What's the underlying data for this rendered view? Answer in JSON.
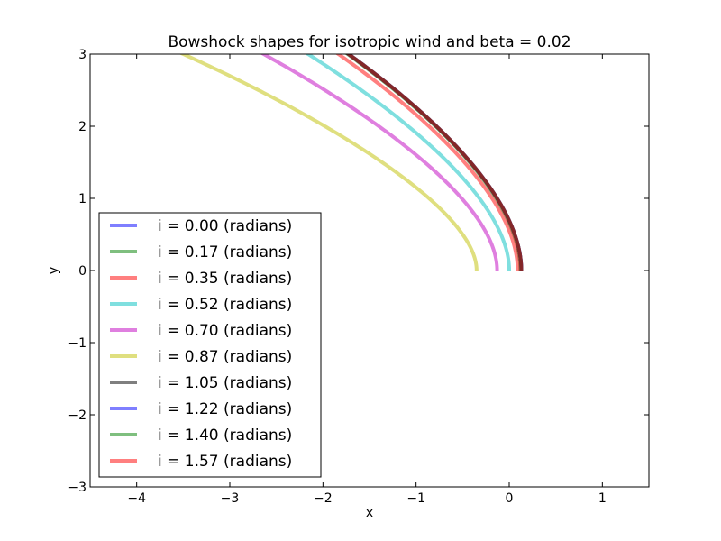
{
  "chart_data": {
    "type": "line",
    "title": "Bowshock shapes for isotropic wind and beta = 0.02",
    "xlabel": "x",
    "ylabel": "y",
    "xlim": [
      -4.5,
      1.5
    ],
    "ylim": [
      -3,
      3
    ],
    "xticks": [
      -4,
      -3,
      -2,
      -1,
      0,
      1
    ],
    "yticks": [
      -3,
      -2,
      -1,
      0,
      1,
      2,
      3
    ],
    "xtick_labels": [
      "−4",
      "−3",
      "−2",
      "−1",
      "0",
      "1"
    ],
    "ytick_labels": [
      "−3",
      "−2",
      "−1",
      "0",
      "1",
      "2",
      "3"
    ],
    "grid": false,
    "legend_position": "lower-left",
    "series": [
      {
        "name": "i = 0.00 (radians)",
        "color": "#0000ff",
        "x0": 0.13,
        "p": [
          1.8,
          0.32,
          -0.013
        ]
      },
      {
        "name": "i = 0.17 (radians)",
        "color": "#008000",
        "x0": 0.12,
        "p": [
          1.8,
          0.32,
          -0.013
        ]
      },
      {
        "name": "i = 0.35 (radians)",
        "color": "#ff0000",
        "x0": 0.09,
        "p": [
          1.74,
          0.33,
          -0.013
        ]
      },
      {
        "name": "i = 0.52 (radians)",
        "color": "#00bfbf",
        "x0": 0.0,
        "p": [
          1.58,
          0.34,
          -0.012
        ]
      },
      {
        "name": "i = 0.70 (radians)",
        "color": "#bf00bf",
        "x0": -0.13,
        "p": [
          1.42,
          0.33,
          -0.012
        ]
      },
      {
        "name": "i = 0.87 (radians)",
        "color": "#bfbf00",
        "x0": -0.35,
        "p": [
          1.16,
          0.34,
          -0.013
        ]
      },
      {
        "name": "i = 1.05 (radians)",
        "color": "#000000",
        "x0": 0.13,
        "p": [
          1.8,
          0.32,
          -0.013
        ]
      },
      {
        "name": "i = 1.22 (radians)",
        "color": "#0000ff",
        "x0": 0.13,
        "p": [
          1.8,
          0.32,
          -0.013
        ]
      },
      {
        "name": "i = 1.40 (radians)",
        "color": "#008000",
        "x0": 0.13,
        "p": [
          1.8,
          0.32,
          -0.013
        ]
      },
      {
        "name": "i = 1.57 (radians)",
        "color": "#ff0000",
        "x0": 0.13,
        "p": [
          1.8,
          0.32,
          -0.013
        ]
      }
    ]
  }
}
